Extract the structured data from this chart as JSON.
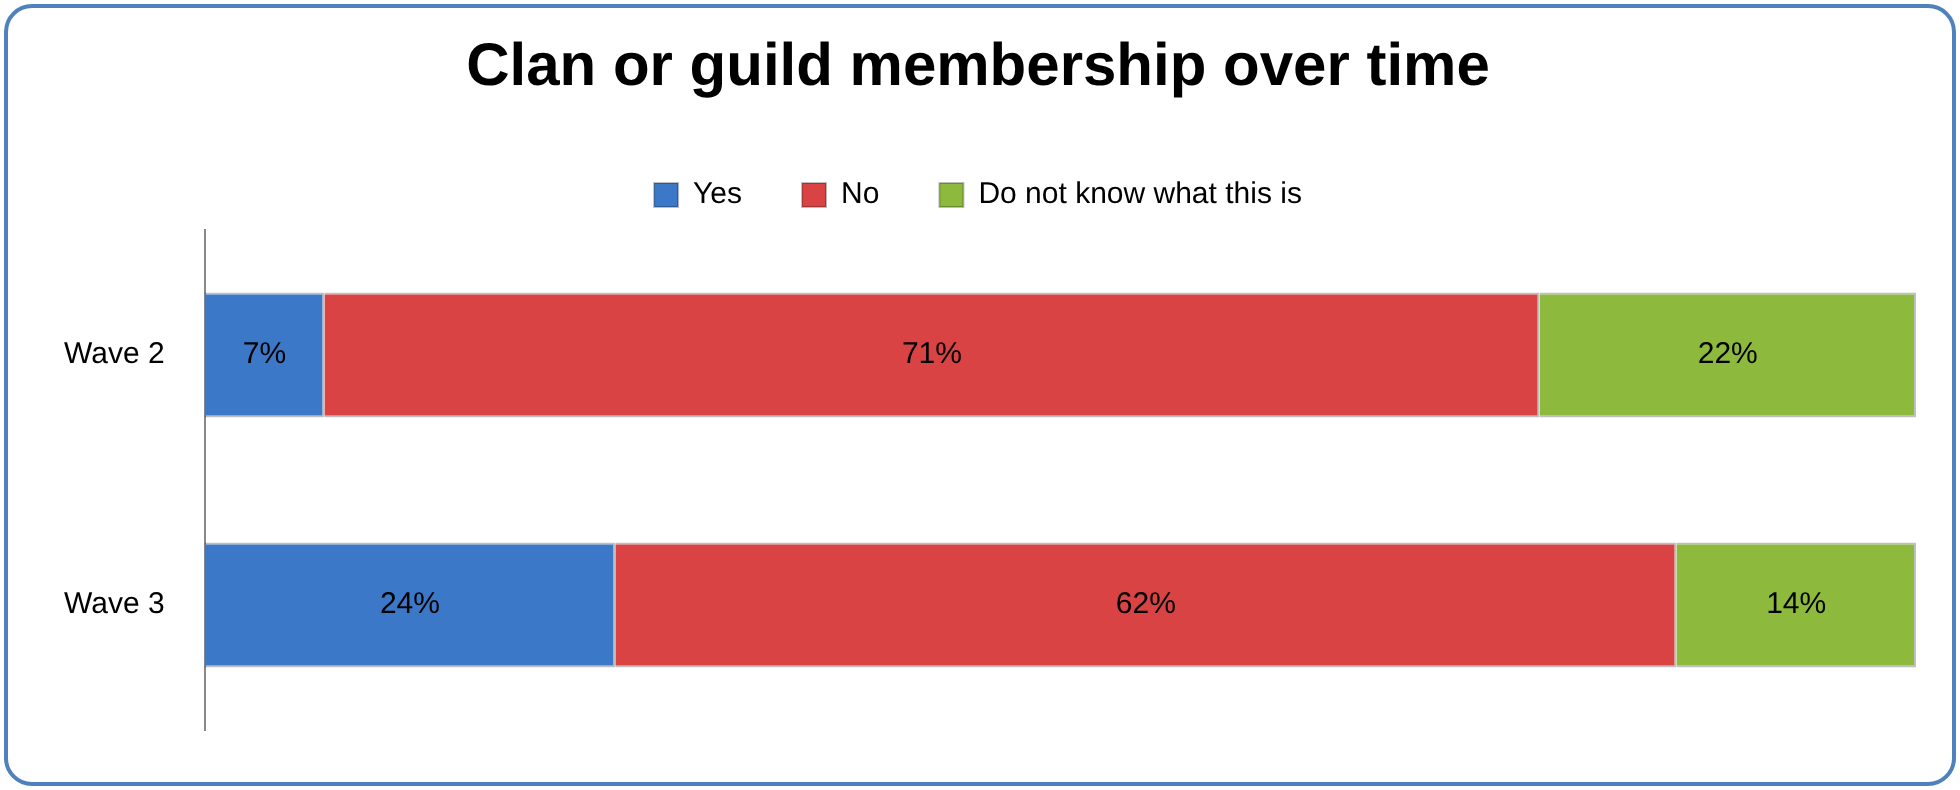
{
  "chart_data": {
    "type": "bar",
    "orientation": "horizontal",
    "stacked": true,
    "title": "Clan or guild membership over time",
    "categories": [
      "Wave 2",
      "Wave 3"
    ],
    "series": [
      {
        "name": "Yes",
        "color": "#3c78c8",
        "values": [
          7,
          24
        ],
        "value_labels": [
          "7%",
          "24%"
        ]
      },
      {
        "name": "No",
        "color": "#d94343",
        "values": [
          71,
          62
        ],
        "value_labels": [
          "71%",
          "62%"
        ]
      },
      {
        "name": "Do not know what this is",
        "color": "#8dba3c",
        "values": [
          22,
          14
        ],
        "value_labels": [
          "22%",
          "14%"
        ]
      }
    ],
    "legend": "top",
    "grid": false,
    "tick_labels": "y"
  }
}
